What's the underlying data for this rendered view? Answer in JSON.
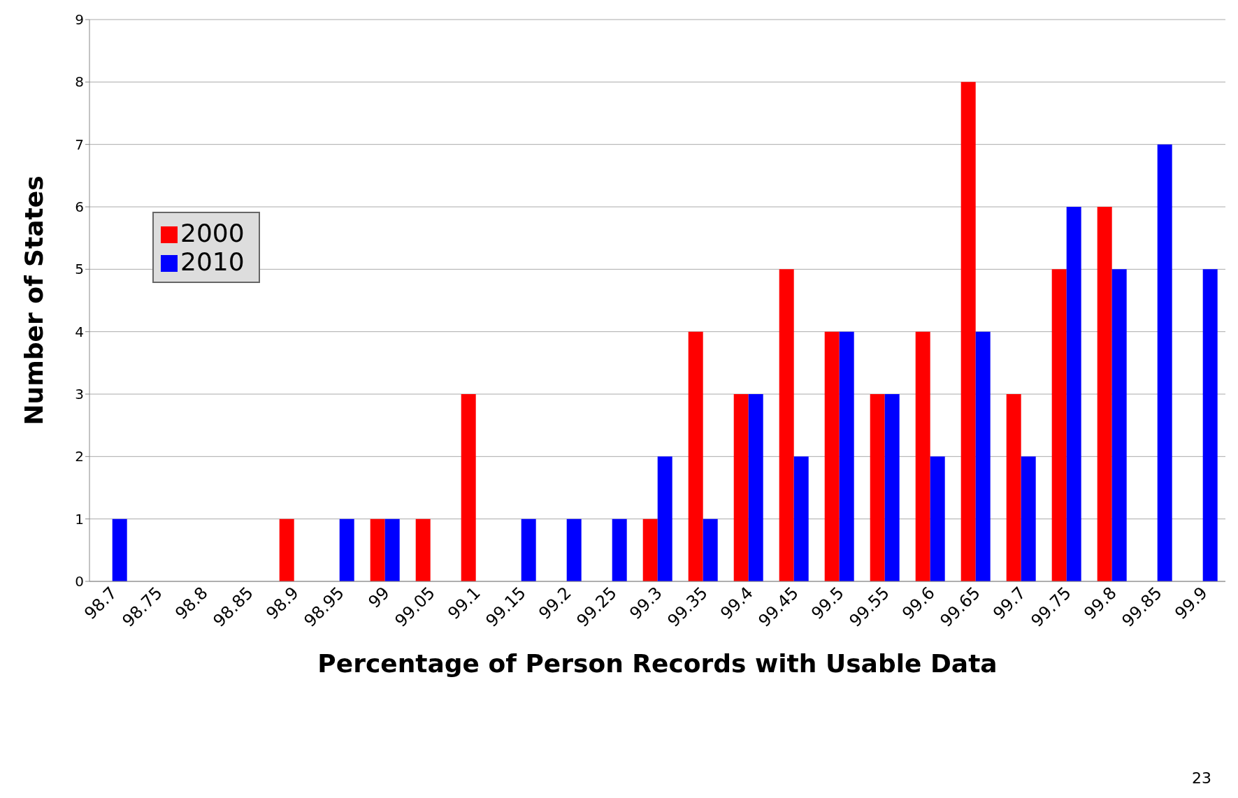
{
  "chart_data": {
    "type": "bar",
    "xlabel": "Percentage of Person Records with Usable Data",
    "ylabel": "Number of States",
    "categories": [
      "98.7",
      "98.75",
      "98.8",
      "98.85",
      "98.9",
      "98.95",
      "99",
      "99.05",
      "99.1",
      "99.15",
      "99.2",
      "99.25",
      "99.3",
      "99.35",
      "99.4",
      "99.45",
      "99.5",
      "99.55",
      "99.6",
      "99.65",
      "99.7",
      "99.75",
      "99.8",
      "99.85",
      "99.9"
    ],
    "series": [
      {
        "name": "2000",
        "color": "#ff0000",
        "values": [
          0,
          0,
          0,
          0,
          1,
          0,
          1,
          1,
          3,
          0,
          0,
          0,
          1,
          4,
          3,
          5,
          4,
          3,
          4,
          8,
          3,
          5,
          6,
          0,
          0
        ]
      },
      {
        "name": "2010",
        "color": "#0000ff",
        "values": [
          1,
          0,
          0,
          0,
          0,
          1,
          1,
          0,
          0,
          1,
          1,
          1,
          2,
          1,
          3,
          2,
          4,
          3,
          2,
          4,
          2,
          6,
          5,
          7,
          5
        ]
      }
    ],
    "ylim": [
      0,
      9
    ],
    "yticks": [
      0,
      1,
      2,
      3,
      4,
      5,
      6,
      7,
      8,
      9
    ],
    "grid": "y",
    "legend": "left",
    "annotations": [
      "23"
    ]
  }
}
